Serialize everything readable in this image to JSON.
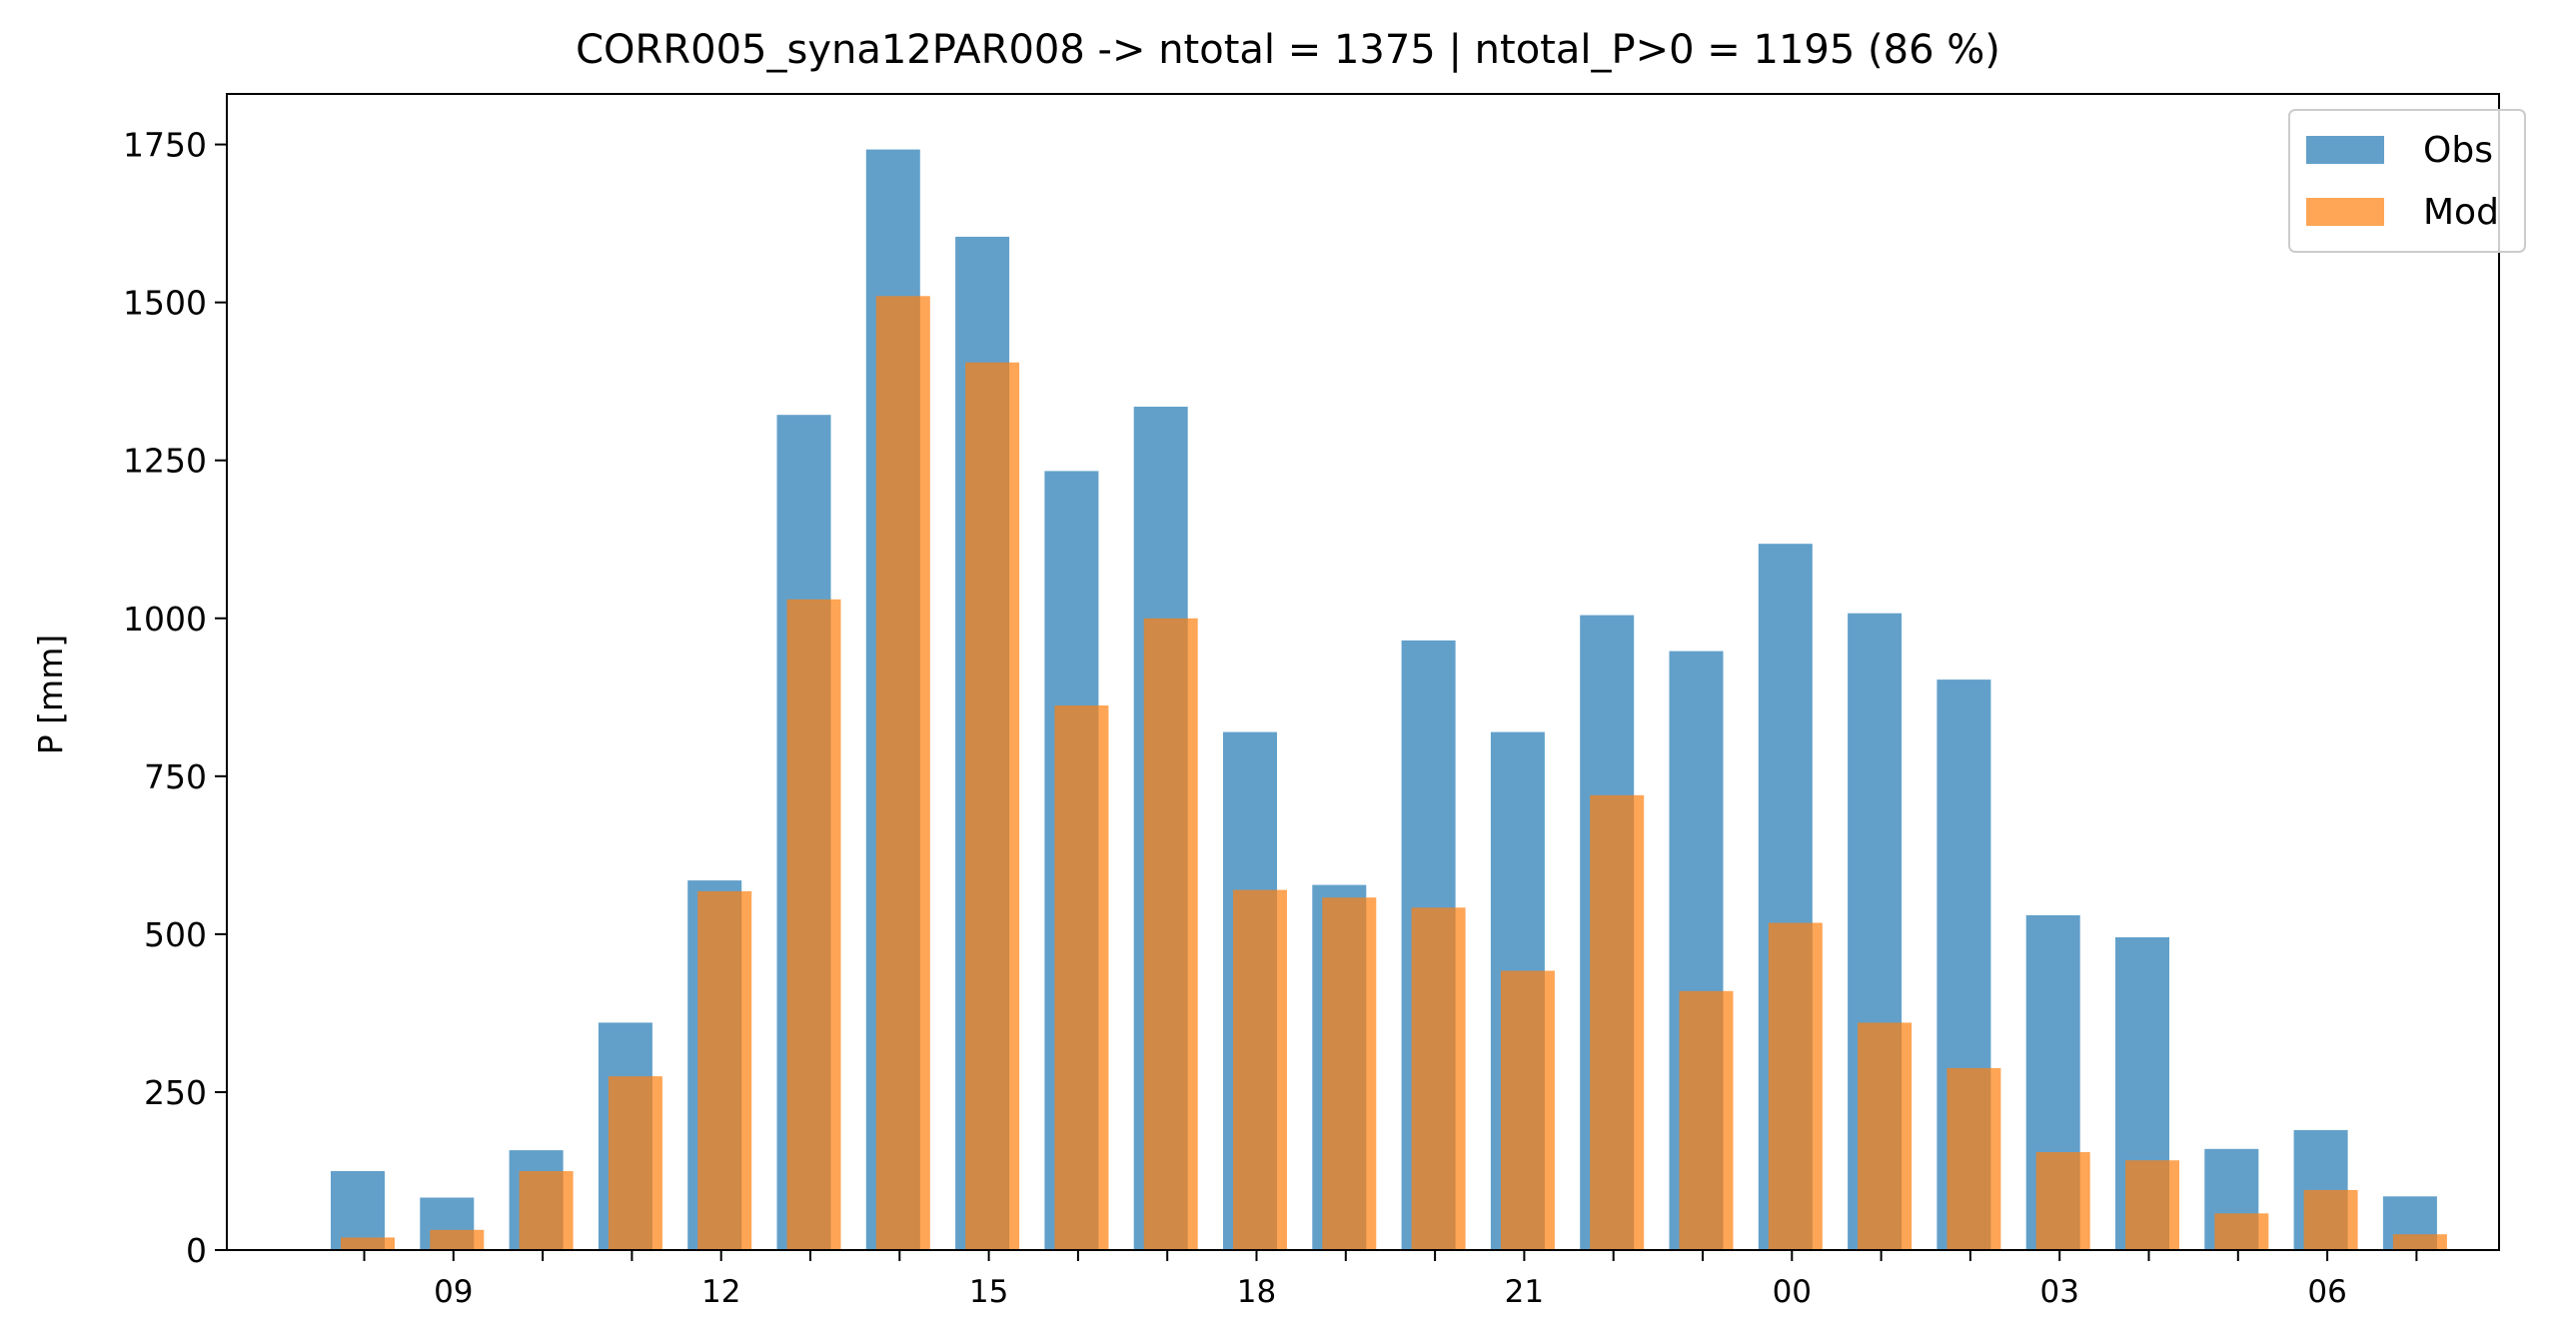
{
  "chart_data": {
    "type": "bar",
    "title": "CORR005_syna12PAR008 -> ntotal = 1375 | ntotal_P>0 = 1195 (86 %)",
    "xlabel": "",
    "ylabel": "P [mm]",
    "ylim": [
      0,
      1830
    ],
    "yticks": [
      0,
      250,
      500,
      750,
      1000,
      1250,
      1500,
      1750
    ],
    "grid": false,
    "legend_position": "top-right",
    "x_hours": [
      8,
      9,
      10,
      11,
      12,
      13,
      14,
      15,
      16,
      17,
      18,
      19,
      20,
      21,
      22,
      23,
      0,
      1,
      2,
      3,
      4,
      5,
      6,
      7
    ],
    "xtick_labels": [
      {
        "at_index": 1,
        "label": "09"
      },
      {
        "at_index": 4,
        "label": "12"
      },
      {
        "at_index": 7,
        "label": "15"
      },
      {
        "at_index": 10,
        "label": "18"
      },
      {
        "at_index": 13,
        "label": "21"
      },
      {
        "at_index": 16,
        "label": "00"
      },
      {
        "at_index": 19,
        "label": "03"
      },
      {
        "at_index": 22,
        "label": "06"
      }
    ],
    "series": [
      {
        "name": "Obs",
        "color": "#1f77b4",
        "opacity": 0.7,
        "values": [
          125,
          83,
          158,
          360,
          585,
          1322,
          1742,
          1604,
          1233,
          1335,
          820,
          578,
          965,
          820,
          1005,
          948,
          1118,
          1008,
          903,
          530,
          495,
          160,
          190,
          85
        ]
      },
      {
        "name": "Mod",
        "color": "#ff7f0e",
        "opacity": 0.7,
        "values": [
          20,
          32,
          125,
          275,
          568,
          1030,
          1510,
          1405,
          862,
          1000,
          570,
          558,
          542,
          442,
          720,
          410,
          518,
          360,
          288,
          155,
          142,
          58,
          95,
          25
        ]
      }
    ]
  }
}
